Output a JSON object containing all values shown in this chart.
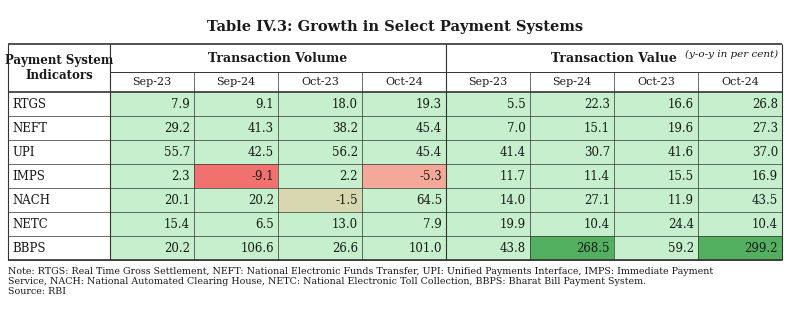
{
  "title": "Table IV.3: Growth in Select Payment Systems",
  "subtitle": "(y-o-y in per cent)",
  "rows": [
    [
      "RTGS",
      7.9,
      9.1,
      18.0,
      19.3,
      5.5,
      22.3,
      16.6,
      26.8
    ],
    [
      "NEFT",
      29.2,
      41.3,
      38.2,
      45.4,
      7.0,
      15.1,
      19.6,
      27.3
    ],
    [
      "UPI",
      55.7,
      42.5,
      56.2,
      45.4,
      41.4,
      30.7,
      41.6,
      37.0
    ],
    [
      "IMPS",
      2.3,
      -9.1,
      2.2,
      -5.3,
      11.7,
      11.4,
      15.5,
      16.9
    ],
    [
      "NACH",
      20.1,
      20.2,
      -1.5,
      64.5,
      14.0,
      27.1,
      11.9,
      43.5
    ],
    [
      "NETC",
      15.4,
      6.5,
      13.0,
      7.9,
      19.9,
      10.4,
      24.4,
      10.4
    ],
    [
      "BBPS",
      20.2,
      106.6,
      26.6,
      101.0,
      43.8,
      268.5,
      59.2,
      299.2
    ]
  ],
  "note_line1": "Note: RTGS: Real Time Gross Settlement, NEFT: National Electronic Funds Transfer, UPI: Unified Payments Interface, IMPS: Immediate Payment",
  "note_line2": "Service, NACH: National Automated Clearing House, NETC: National Electronic Toll Collection, BBPS: Bharat Bill Payment System.",
  "note_line3": "Source: RBI",
  "bg_color": "#ffffff",
  "text_color": "#1a1a1a",
  "cell_colors": [
    [
      "#c6efce",
      "#c6efce",
      "#c6efce",
      "#c6efce",
      "#c6efce",
      "#c6efce",
      "#c6efce",
      "#c6efce"
    ],
    [
      "#c6efce",
      "#c6efce",
      "#c6efce",
      "#c6efce",
      "#c6efce",
      "#c6efce",
      "#c6efce",
      "#c6efce"
    ],
    [
      "#c6efce",
      "#c6efce",
      "#c6efce",
      "#c6efce",
      "#c6efce",
      "#c6efce",
      "#c6efce",
      "#c6efce"
    ],
    [
      "#c6efce",
      "#f1716f",
      "#c6efce",
      "#f4a89a",
      "#c6efce",
      "#c6efce",
      "#c6efce",
      "#c6efce"
    ],
    [
      "#c6efce",
      "#c6efce",
      "#d8d8b0",
      "#c6efce",
      "#c6efce",
      "#c6efce",
      "#c6efce",
      "#c6efce"
    ],
    [
      "#c6efce",
      "#c6efce",
      "#c6efce",
      "#c6efce",
      "#c6efce",
      "#c6efce",
      "#c6efce",
      "#c6efce"
    ],
    [
      "#c6efce",
      "#c6efce",
      "#c6efce",
      "#c6efce",
      "#c6efce",
      "#52b060",
      "#c6efce",
      "#52b060"
    ]
  ]
}
